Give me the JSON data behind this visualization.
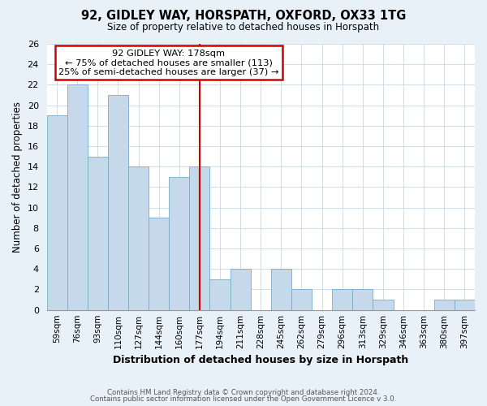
{
  "title": "92, GIDLEY WAY, HORSPATH, OXFORD, OX33 1TG",
  "subtitle": "Size of property relative to detached houses in Horspath",
  "xlabel": "Distribution of detached houses by size in Horspath",
  "ylabel": "Number of detached properties",
  "bin_labels": [
    "59sqm",
    "76sqm",
    "93sqm",
    "110sqm",
    "127sqm",
    "144sqm",
    "160sqm",
    "177sqm",
    "194sqm",
    "211sqm",
    "228sqm",
    "245sqm",
    "262sqm",
    "279sqm",
    "296sqm",
    "313sqm",
    "329sqm",
    "346sqm",
    "363sqm",
    "380sqm",
    "397sqm"
  ],
  "bar_heights": [
    19,
    22,
    15,
    21,
    14,
    9,
    13,
    14,
    3,
    4,
    0,
    4,
    2,
    0,
    2,
    2,
    1,
    0,
    0,
    1,
    1
  ],
  "bar_color": "#c5d9ea",
  "highlight_bar_index": 7,
  "highlight_line_color": "#cc0000",
  "ylim": [
    0,
    26
  ],
  "yticks": [
    0,
    2,
    4,
    6,
    8,
    10,
    12,
    14,
    16,
    18,
    20,
    22,
    24,
    26
  ],
  "annotation_title": "92 GIDLEY WAY: 178sqm",
  "annotation_line1": "← 75% of detached houses are smaller (113)",
  "annotation_line2": "25% of semi-detached houses are larger (37) →",
  "annotation_box_color": "#ffffff",
  "annotation_box_edge": "#cc0000",
  "footer_line1": "Contains HM Land Registry data © Crown copyright and database right 2024.",
  "footer_line2": "Contains public sector information licensed under the Open Government Licence v 3.0.",
  "grid_color": "#c8d8e8",
  "background_color": "#e8f0f8",
  "plot_bg_color": "#ffffff"
}
